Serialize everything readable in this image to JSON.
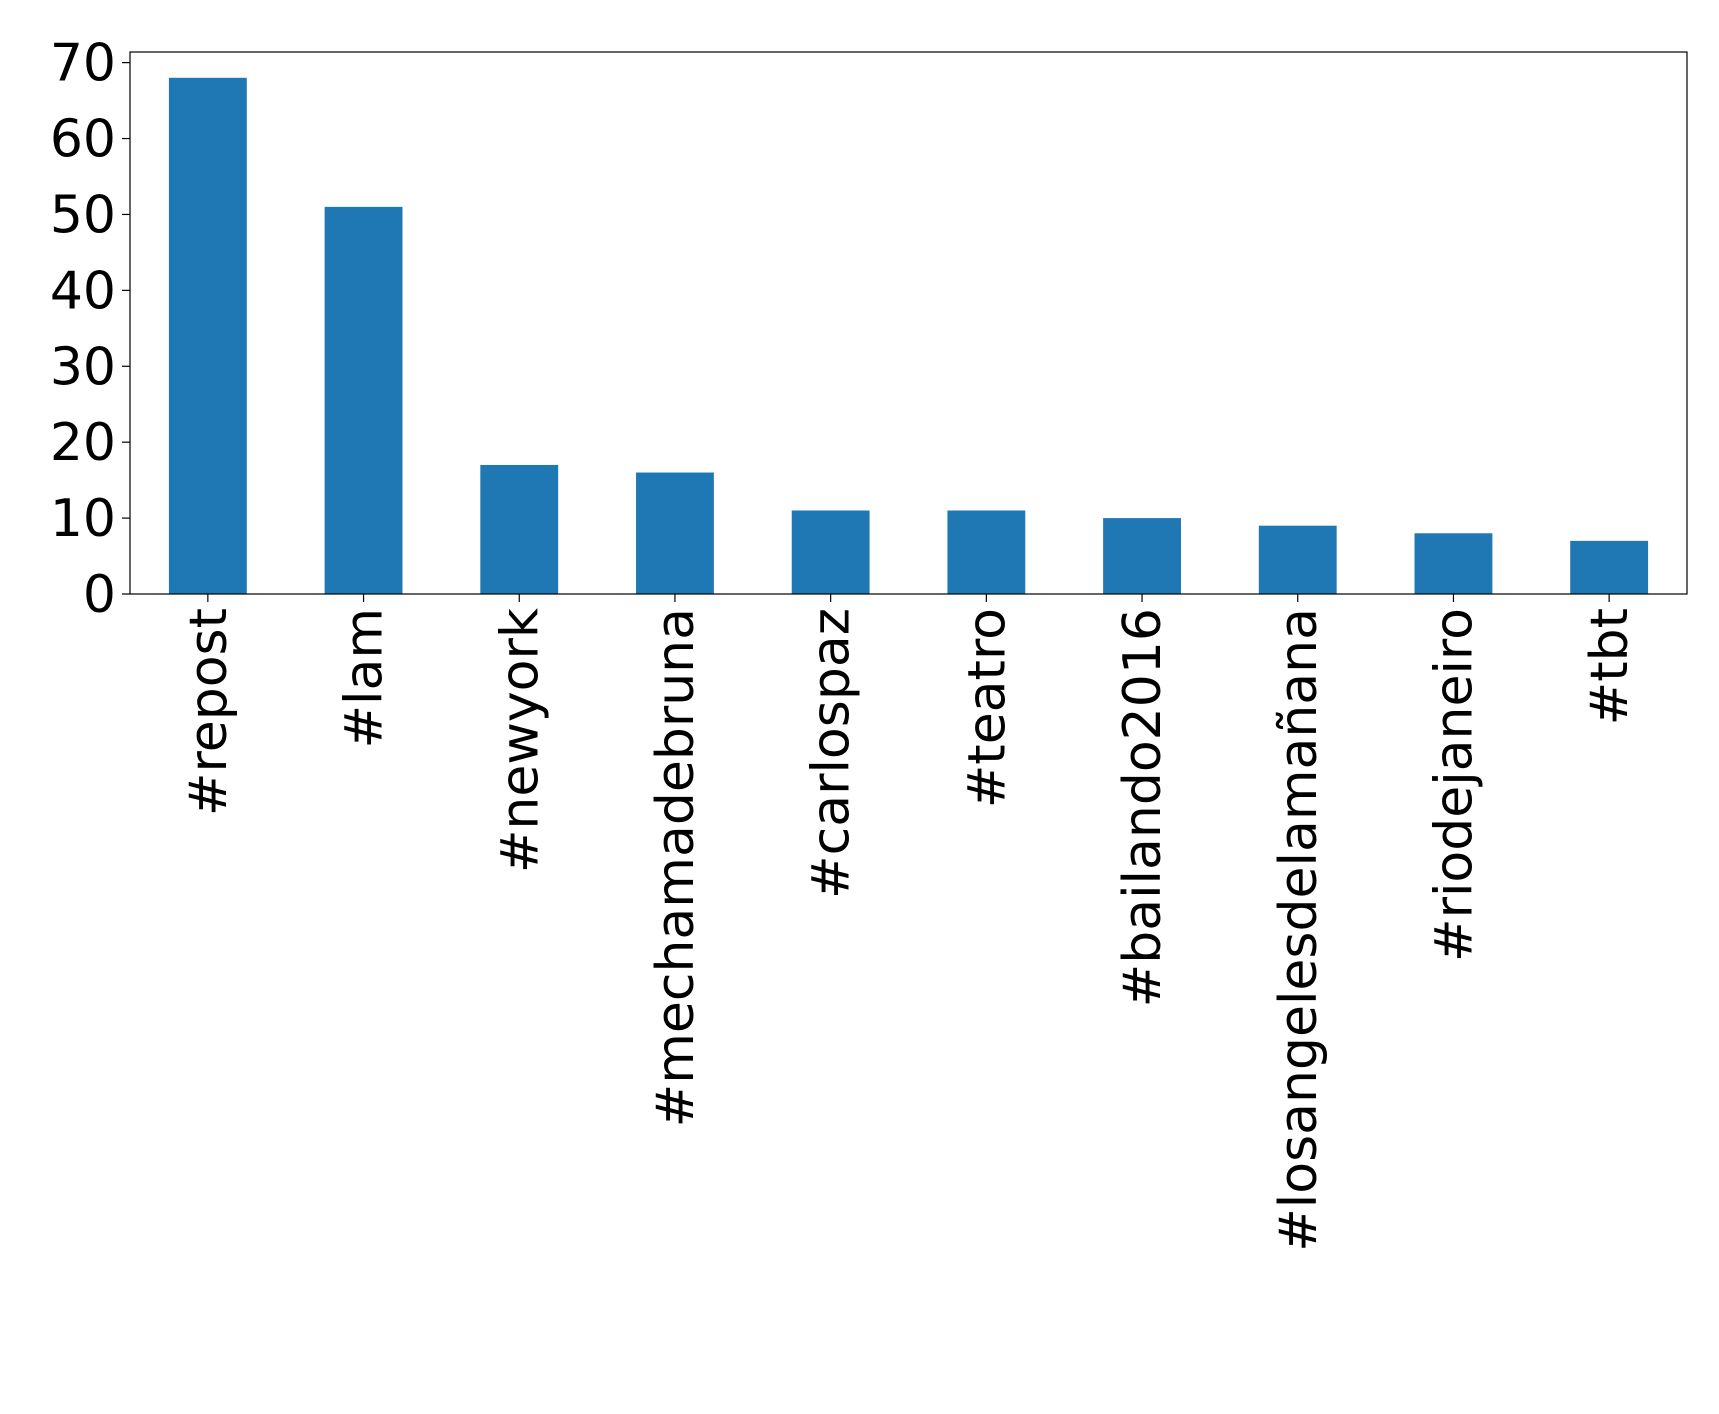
{
  "chart_data": {
    "type": "bar",
    "categories": [
      "#repost",
      "#lam",
      "#newyork",
      "#mechamadebruna",
      "#carlospaz",
      "#teatro",
      "#bailando2016",
      "#losangelesdelamañana",
      "#riodejaneiro",
      "#tbt"
    ],
    "values": [
      68,
      51,
      17,
      16,
      11,
      11,
      10,
      9,
      8,
      7
    ],
    "color": "#1f77b4",
    "ylim": [
      0,
      71.4
    ],
    "yticks": [
      0,
      10,
      20,
      30,
      40,
      50,
      60,
      70
    ],
    "grid": false
  }
}
